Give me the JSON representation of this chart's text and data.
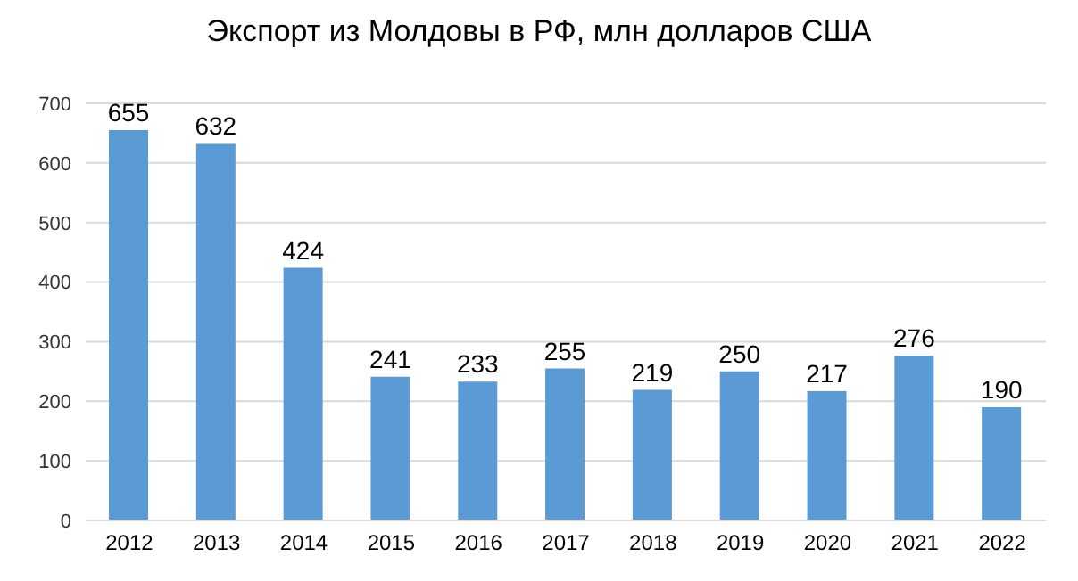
{
  "chart_data": {
    "type": "bar",
    "title": "Экспорт из  Молдовы в РФ, млн долларов США",
    "categories": [
      "2012",
      "2013",
      "2014",
      "2015",
      "2016",
      "2017",
      "2018",
      "2019",
      "2020",
      "2021",
      "2022"
    ],
    "values": [
      655,
      632,
      424,
      241,
      233,
      255,
      219,
      250,
      217,
      276,
      190
    ],
    "color": "#5b9bd5",
    "ylim": [
      0,
      700
    ],
    "yticks": [
      0,
      100,
      200,
      300,
      400,
      500,
      600,
      700
    ],
    "grid": "y",
    "data_labels": true
  }
}
